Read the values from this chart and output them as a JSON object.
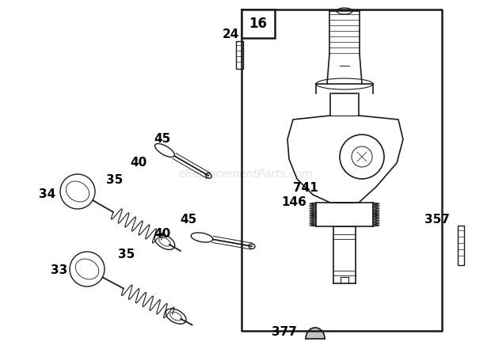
{
  "bg_color": "#ffffff",
  "line_color": "#1a1a1a",
  "text_color": "#000000",
  "watermark_text": "eReplacementParts.com",
  "watermark_color": "#c8c8c8",
  "fig_w": 6.2,
  "fig_h": 4.46,
  "dpi": 100,
  "xlim": [
    0,
    620
  ],
  "ylim": [
    0,
    446
  ]
}
